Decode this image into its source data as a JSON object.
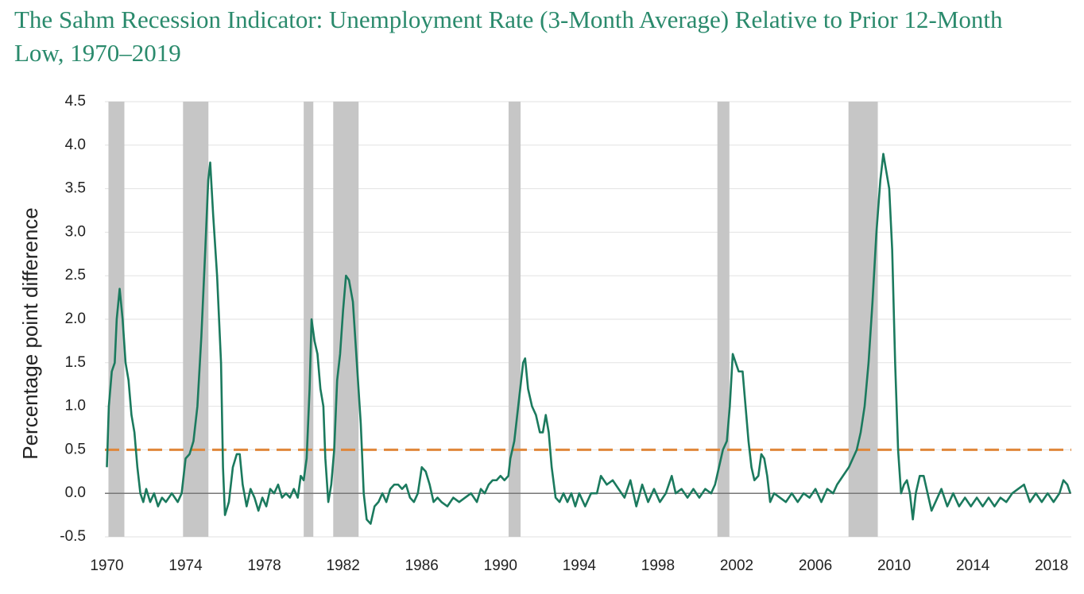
{
  "chart_data": {
    "type": "line",
    "title": "The Sahm Recession Indicator: Unemployment Rate (3-Month Average) Relative to Prior 12-Month Low, 1970–2019",
    "ylabel": "Percentage point difference",
    "xlim": [
      1969.9,
      2019.0
    ],
    "xticks": [
      1970,
      1974,
      1978,
      1982,
      1986,
      1990,
      1994,
      1998,
      2002,
      2006,
      2010,
      2014,
      2018
    ],
    "ylim": [
      -0.5,
      4.5
    ],
    "yticks": [
      -0.5,
      {
        "value": 0,
        "label": "0.0"
      },
      0.5,
      {
        "value": 1,
        "label": "1.0"
      },
      1.5,
      {
        "value": 2,
        "label": "2.0"
      },
      2.5,
      {
        "value": 3,
        "label": "3.0"
      },
      3.5,
      {
        "value": 4,
        "label": "4.0"
      },
      4.5
    ],
    "grid": true,
    "threshold": 0.5,
    "threshold_color": "#e0873a",
    "recession_color": "#c6c6c6",
    "recessions": [
      [
        1970.08,
        1970.89
      ],
      [
        1973.87,
        1975.16
      ],
      [
        1980.0,
        1980.49
      ],
      [
        1981.5,
        1982.79
      ],
      [
        1990.41,
        1991.02
      ],
      [
        2001.02,
        2001.63
      ],
      [
        2007.68,
        2009.17
      ]
    ],
    "x": [
      1970.0,
      1970.1,
      1970.25,
      1970.4,
      1970.5,
      1970.65,
      1970.8,
      1970.95,
      1971.1,
      1971.25,
      1971.4,
      1971.55,
      1971.7,
      1971.85,
      1972.0,
      1972.2,
      1972.4,
      1972.6,
      1972.8,
      1973.0,
      1973.3,
      1973.6,
      1973.8,
      1974.0,
      1974.2,
      1974.4,
      1974.6,
      1974.8,
      1975.0,
      1975.15,
      1975.25,
      1975.4,
      1975.6,
      1975.8,
      1975.9,
      1976.0,
      1976.2,
      1976.4,
      1976.6,
      1976.75,
      1976.9,
      1977.1,
      1977.3,
      1977.5,
      1977.7,
      1977.9,
      1978.1,
      1978.3,
      1978.5,
      1978.7,
      1978.9,
      1979.1,
      1979.3,
      1979.5,
      1979.7,
      1979.85,
      1980.0,
      1980.15,
      1980.3,
      1980.4,
      1980.55,
      1980.7,
      1980.85,
      1981.0,
      1981.1,
      1981.25,
      1981.4,
      1981.55,
      1981.7,
      1981.85,
      1982.0,
      1982.15,
      1982.3,
      1982.5,
      1982.7,
      1982.9,
      1983.05,
      1983.2,
      1983.4,
      1983.6,
      1983.8,
      1984.0,
      1984.2,
      1984.4,
      1984.6,
      1984.8,
      1985.0,
      1985.2,
      1985.4,
      1985.6,
      1985.8,
      1986.0,
      1986.2,
      1986.4,
      1986.6,
      1986.8,
      1987.0,
      1987.3,
      1987.6,
      1987.9,
      1988.2,
      1988.5,
      1988.8,
      1989.0,
      1989.2,
      1989.4,
      1989.6,
      1989.8,
      1990.0,
      1990.2,
      1990.4,
      1990.5,
      1990.7,
      1990.85,
      1991.0,
      1991.15,
      1991.25,
      1991.4,
      1991.6,
      1991.8,
      1992.0,
      1992.15,
      1992.3,
      1992.45,
      1992.6,
      1992.8,
      1993.0,
      1993.2,
      1993.4,
      1993.6,
      1993.8,
      1994.0,
      1994.3,
      1994.6,
      1994.9,
      1995.1,
      1995.4,
      1995.7,
      1996.0,
      1996.3,
      1996.6,
      1996.9,
      1997.2,
      1997.5,
      1997.8,
      1998.1,
      1998.4,
      1998.7,
      1998.9,
      1999.2,
      1999.5,
      1999.8,
      2000.1,
      2000.4,
      2000.7,
      2000.9,
      2001.1,
      2001.3,
      2001.5,
      2001.65,
      2001.8,
      2001.95,
      2002.1,
      2002.3,
      2002.45,
      2002.6,
      2002.75,
      2002.9,
      2003.1,
      2003.25,
      2003.4,
      2003.55,
      2003.7,
      2003.9,
      2004.2,
      2004.5,
      2004.8,
      2005.1,
      2005.4,
      2005.7,
      2006.0,
      2006.3,
      2006.6,
      2006.9,
      2007.1,
      2007.4,
      2007.7,
      2007.9,
      2008.1,
      2008.3,
      2008.5,
      2008.7,
      2008.9,
      2009.1,
      2009.3,
      2009.45,
      2009.6,
      2009.75,
      2009.9,
      2010.05,
      2010.2,
      2010.35,
      2010.5,
      2010.65,
      2010.8,
      2010.95,
      2011.1,
      2011.3,
      2011.5,
      2011.7,
      2011.9,
      2012.1,
      2012.4,
      2012.7,
      2013.0,
      2013.3,
      2013.6,
      2013.9,
      2014.2,
      2014.5,
      2014.8,
      2015.1,
      2015.4,
      2015.7,
      2016.0,
      2016.3,
      2016.6,
      2016.9,
      2017.2,
      2017.5,
      2017.8,
      2018.1,
      2018.4,
      2018.6,
      2018.8,
      2018.95
    ],
    "series": [
      {
        "color": "#1b7a5e",
        "values": [
          0.3,
          1.0,
          1.4,
          1.5,
          2.0,
          2.35,
          2.0,
          1.5,
          1.3,
          0.9,
          0.7,
          0.3,
          0.0,
          -0.1,
          0.05,
          -0.1,
          0.0,
          -0.15,
          -0.05,
          -0.1,
          0.0,
          -0.1,
          0.0,
          0.4,
          0.45,
          0.6,
          1.0,
          1.8,
          2.8,
          3.6,
          3.8,
          3.2,
          2.5,
          1.5,
          0.3,
          -0.25,
          -0.1,
          0.3,
          0.45,
          0.45,
          0.1,
          -0.15,
          0.05,
          -0.05,
          -0.2,
          -0.05,
          -0.15,
          0.05,
          0.0,
          0.1,
          -0.05,
          0.0,
          -0.05,
          0.05,
          -0.05,
          0.2,
          0.15,
          0.4,
          1.2,
          2.0,
          1.75,
          1.6,
          1.2,
          1.0,
          0.4,
          -0.1,
          0.1,
          0.5,
          1.3,
          1.6,
          2.1,
          2.5,
          2.45,
          2.2,
          1.5,
          0.8,
          0.0,
          -0.3,
          -0.35,
          -0.15,
          -0.1,
          0.0,
          -0.1,
          0.05,
          0.1,
          0.1,
          0.05,
          0.1,
          -0.05,
          -0.1,
          0.0,
          0.3,
          0.25,
          0.1,
          -0.1,
          -0.05,
          -0.1,
          -0.15,
          -0.05,
          -0.1,
          -0.05,
          0.0,
          -0.1,
          0.05,
          0.0,
          0.1,
          0.15,
          0.15,
          0.2,
          0.15,
          0.2,
          0.4,
          0.6,
          0.9,
          1.2,
          1.5,
          1.55,
          1.2,
          1.0,
          0.9,
          0.7,
          0.7,
          0.9,
          0.7,
          0.3,
          -0.05,
          -0.1,
          0.0,
          -0.1,
          0.0,
          -0.15,
          0.0,
          -0.15,
          0.0,
          0.0,
          0.2,
          0.1,
          0.15,
          0.05,
          -0.05,
          0.15,
          -0.15,
          0.1,
          -0.1,
          0.05,
          -0.1,
          0.0,
          0.2,
          0.0,
          0.05,
          -0.05,
          0.05,
          -0.05,
          0.05,
          0.0,
          0.1,
          0.3,
          0.5,
          0.6,
          1.0,
          1.6,
          1.5,
          1.4,
          1.4,
          1.0,
          0.6,
          0.3,
          0.15,
          0.2,
          0.45,
          0.4,
          0.2,
          -0.1,
          0.0,
          -0.05,
          -0.1,
          0.0,
          -0.1,
          0.0,
          -0.05,
          0.05,
          -0.1,
          0.05,
          0.0,
          0.1,
          0.2,
          0.3,
          0.4,
          0.5,
          0.7,
          1.0,
          1.5,
          2.2,
          3.0,
          3.6,
          3.9,
          3.7,
          3.5,
          2.8,
          1.5,
          0.5,
          0.0,
          0.1,
          0.15,
          0.0,
          -0.3,
          0.0,
          0.2,
          0.2,
          0.0,
          -0.2,
          -0.1,
          0.05,
          -0.15,
          0.0,
          -0.15,
          -0.05,
          -0.15,
          -0.05,
          -0.15,
          -0.05,
          -0.15,
          -0.05,
          -0.1,
          0.0,
          0.05,
          0.1,
          -0.1,
          0.0,
          -0.1,
          0.0,
          -0.1,
          0.0,
          0.15,
          0.1,
          0.0
        ]
      }
    ]
  }
}
